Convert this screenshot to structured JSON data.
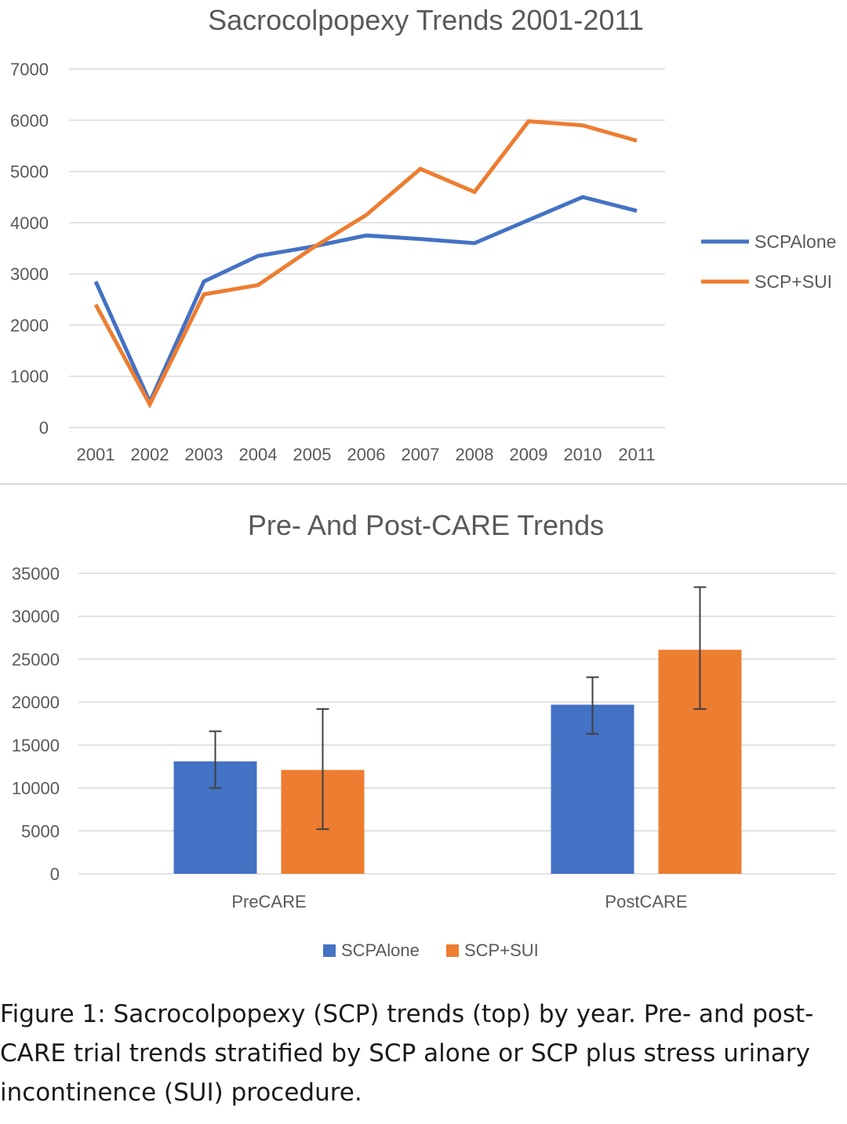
{
  "colors": {
    "series_blue": "#4472c4",
    "series_orange": "#ed7d31",
    "grid": "#d9d9d9",
    "text": "#595959"
  },
  "chart_data": [
    {
      "type": "line",
      "title": "Sacrocolpopexy Trends 2001-2011",
      "xlabel": "",
      "ylabel": "",
      "x": [
        "2001",
        "2002",
        "2003",
        "2004",
        "2005",
        "2006",
        "2007",
        "2008",
        "2009",
        "2010",
        "2011"
      ],
      "ylim": [
        0,
        7000
      ],
      "yticks": [
        0,
        1000,
        2000,
        3000,
        4000,
        5000,
        6000,
        7000
      ],
      "grid": true,
      "legend": "right",
      "series": [
        {
          "name": "SCPAlone",
          "color": "#4472c4",
          "values": [
            2850,
            500,
            2850,
            3350,
            3530,
            3750,
            3680,
            3600,
            4050,
            4500,
            4230
          ]
        },
        {
          "name": "SCP+SUI",
          "color": "#ed7d31",
          "values": [
            2400,
            450,
            2600,
            2780,
            3500,
            4150,
            5050,
            4600,
            5980,
            5900,
            5600
          ]
        }
      ]
    },
    {
      "type": "bar",
      "title": "Pre- And Post-CARE Trends",
      "xlabel": "",
      "ylabel": "",
      "categories": [
        "PreCARE",
        "PostCARE"
      ],
      "ylim": [
        0,
        35000
      ],
      "yticks": [
        0,
        5000,
        10000,
        15000,
        20000,
        25000,
        30000,
        35000
      ],
      "grid": true,
      "legend": "bottom",
      "series": [
        {
          "name": "SCPAlone",
          "color": "#4472c4",
          "values": [
            13100,
            19700
          ],
          "error_low": [
            10000,
            16300
          ],
          "error_high": [
            16600,
            22900
          ]
        },
        {
          "name": "SCP+SUI",
          "color": "#ed7d31",
          "values": [
            12100,
            26100
          ],
          "error_low": [
            5200,
            19200
          ],
          "error_high": [
            19200,
            33400
          ]
        }
      ]
    }
  ],
  "caption": "Figure 1: Sacrocolpopexy (SCP) trends (top) by year. Pre- and post-CARE trial trends stratified by SCP alone or SCP plus stress urinary incontinence (SUI) procedure."
}
